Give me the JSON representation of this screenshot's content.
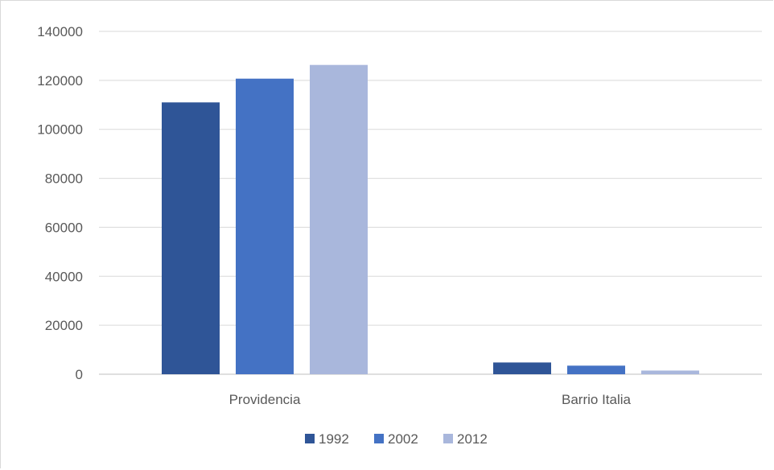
{
  "chart_data": {
    "type": "bar",
    "categories": [
      "Providencia",
      "Barrio Italia"
    ],
    "series": [
      {
        "name": "1992",
        "color": "#2f5597",
        "values": [
          111000,
          4800
        ]
      },
      {
        "name": "2002",
        "color": "#4472c4",
        "values": [
          120700,
          3500
        ]
      },
      {
        "name": "2012",
        "color": "#a9b7dc",
        "values": [
          126300,
          1500
        ]
      }
    ],
    "yticks": [
      "0",
      "20000",
      "40000",
      "60000",
      "80000",
      "100000",
      "120000",
      "140000"
    ],
    "ylim": [
      0,
      140000
    ],
    "grid": true,
    "legend": "bottom",
    "title": "",
    "xlabel": "",
    "ylabel": ""
  }
}
